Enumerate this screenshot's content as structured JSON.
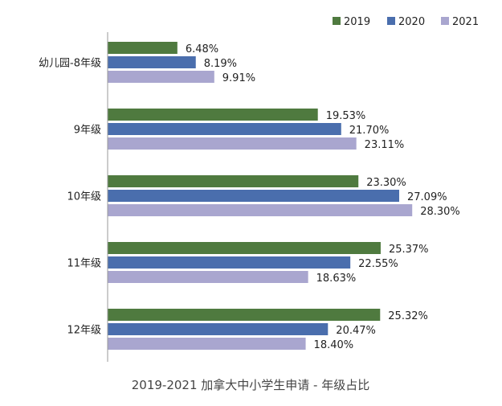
{
  "chart_data": {
    "type": "bar",
    "orientation": "horizontal",
    "title": "2019-2021 加拿大中小学生申请 - 年级占比",
    "categories": [
      "幼儿园-8年级",
      "9年级",
      "10年级",
      "11年级",
      "12年级"
    ],
    "series": [
      {
        "name": "2019",
        "color": "#4f7a3f",
        "values": [
          6.48,
          19.53,
          23.3,
          25.37,
          25.32
        ],
        "labels": [
          "6.48%",
          "19.53%",
          "23.30%",
          "25.37%",
          "25.32%"
        ]
      },
      {
        "name": "2020",
        "color": "#4a6ead",
        "values": [
          8.19,
          21.7,
          27.09,
          22.55,
          20.47
        ],
        "labels": [
          "8.19%",
          "21.70%",
          "27.09%",
          "22.55%",
          "20.47%"
        ]
      },
      {
        "name": "2021",
        "color": "#a9a6cf",
        "values": [
          9.91,
          23.11,
          28.3,
          18.63,
          18.4
        ],
        "labels": [
          "9.91%",
          "23.11%",
          "28.30%",
          "18.63%",
          "18.40%"
        ]
      }
    ],
    "xlim": [
      0,
      30
    ],
    "grid": false,
    "legend_position": "top-right"
  }
}
